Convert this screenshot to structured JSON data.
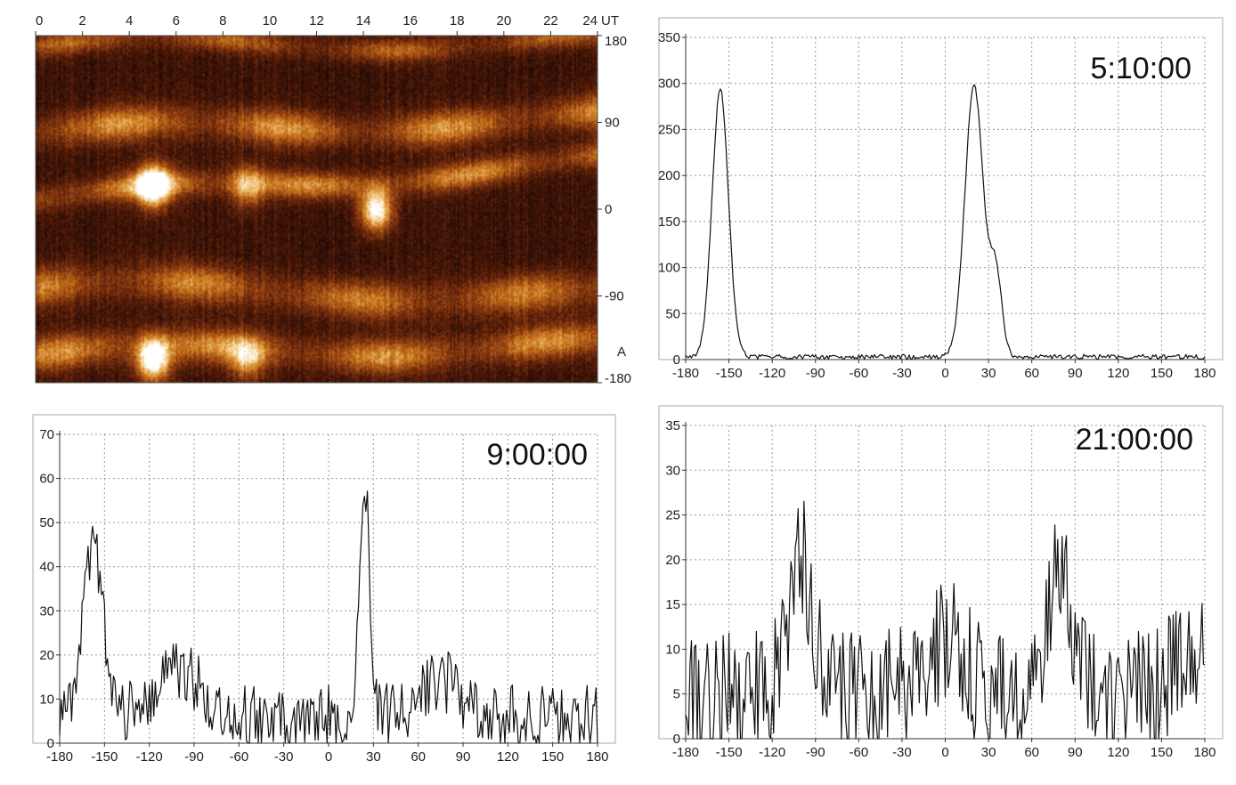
{
  "chart_data": [
    {
      "type": "heatmap",
      "x_label_unit": "UT",
      "x_ticks": [
        0,
        2,
        4,
        6,
        8,
        10,
        12,
        14,
        16,
        18,
        20,
        22,
        24
      ],
      "y_ticks": [
        180,
        90,
        0,
        -90,
        -180
      ],
      "y_side_label": "A",
      "xlim": [
        0,
        24
      ],
      "ylim": [
        -180,
        180
      ],
      "colormap": [
        "#1a0804",
        "#4a1808",
        "#8a3a10",
        "#c8741c",
        "#f0c070",
        "#ffffff"
      ],
      "bands": [
        {
          "center_start": 10,
          "center_end": 50,
          "width": 14,
          "intensity": 0.55
        },
        {
          "center_start": 80,
          "center_end": 95,
          "width": 18,
          "intensity": 0.55
        },
        {
          "center_start": -80,
          "center_end": -90,
          "width": 20,
          "intensity": 0.5
        },
        {
          "center_start": -150,
          "center_end": -140,
          "width": 18,
          "intensity": 0.55
        },
        {
          "center_start": 170,
          "center_end": 175,
          "width": 12,
          "intensity": 0.4
        }
      ],
      "hotspots": [
        {
          "x": 5.0,
          "y": 25,
          "intensity": 1.0
        },
        {
          "x": 5.0,
          "y": -155,
          "intensity": 1.0
        },
        {
          "x": 9.0,
          "y": 25,
          "intensity": 0.5
        },
        {
          "x": 9.0,
          "y": -155,
          "intensity": 0.5
        },
        {
          "x": 14.5,
          "y": 0,
          "intensity": 0.9
        }
      ]
    },
    {
      "type": "line",
      "annotation": "5:10:00",
      "x_ticks": [
        -180,
        -150,
        -120,
        -90,
        -60,
        -30,
        0,
        30,
        60,
        90,
        120,
        150,
        180
      ],
      "y_ticks": [
        0,
        50,
        100,
        150,
        200,
        250,
        300,
        350
      ],
      "xlim": [
        -180,
        180
      ],
      "ylim": [
        0,
        350
      ],
      "grid": true,
      "peaks": [
        {
          "center": -156,
          "height": 290,
          "width": 8
        },
        {
          "center": 20,
          "height": 295,
          "width": 9
        },
        {
          "center": 35,
          "height": 90,
          "width": 6
        }
      ],
      "baseline": 3,
      "noise": 5
    },
    {
      "type": "line",
      "annotation": "9:00:00",
      "x_ticks": [
        -180,
        -150,
        -120,
        -90,
        -60,
        -30,
        0,
        30,
        60,
        90,
        120,
        150,
        180
      ],
      "y_ticks": [
        0,
        10,
        20,
        30,
        40,
        50,
        60,
        70
      ],
      "xlim": [
        -180,
        180
      ],
      "ylim": [
        0,
        70
      ],
      "grid": true,
      "peaks": [
        {
          "center": -158,
          "height": 38,
          "width": 10
        },
        {
          "center": -100,
          "height": 10,
          "width": 22
        },
        {
          "center": 24,
          "height": 52,
          "width": 5
        },
        {
          "center": 75,
          "height": 8,
          "width": 20
        }
      ],
      "baseline": 6,
      "noise": 9
    },
    {
      "type": "line",
      "annotation": "21:00:00",
      "x_ticks": [
        -180,
        -150,
        -120,
        -90,
        -60,
        -30,
        0,
        30,
        60,
        90,
        120,
        150,
        180
      ],
      "y_ticks": [
        0,
        5,
        10,
        15,
        20,
        25,
        30,
        35
      ],
      "xlim": [
        -180,
        180
      ],
      "ylim": [
        0,
        35
      ],
      "grid": true,
      "peaks": [
        {
          "center": -100,
          "height": 15,
          "width": 12
        },
        {
          "center": 0,
          "height": 6,
          "width": 18
        },
        {
          "center": 80,
          "height": 14,
          "width": 12
        },
        {
          "center": 170,
          "height": 5,
          "width": 14
        }
      ],
      "baseline": 5,
      "noise": 9
    }
  ]
}
